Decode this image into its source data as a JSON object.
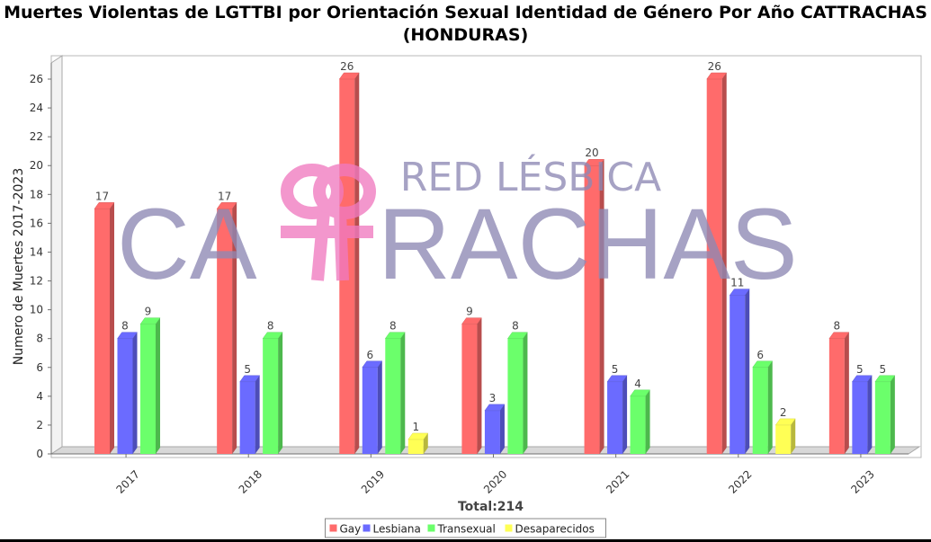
{
  "page": {
    "title": "Muertes Violentas de LGTTBI por Orientación Sexual Identidad de Género Por Año CATTRACHAS\n(HONDURAS)"
  },
  "watermark": {
    "top_text": "RED LÉSBICA",
    "main_text": "CATTRACHAS",
    "main_left": "CA",
    "main_right": "RACHAS",
    "text_color": "#8e89b4",
    "logo_color": "#f07ac0"
  },
  "chart_data": {
    "type": "bar",
    "categories": [
      "2017",
      "2018",
      "2019",
      "2020",
      "2021",
      "2022",
      "2023"
    ],
    "series": [
      {
        "name": "Gay",
        "color": "#ff6b6b",
        "values": [
          17,
          17,
          26,
          9,
          20,
          26,
          8
        ]
      },
      {
        "name": "Lesbiana",
        "color": "#6b6bff",
        "values": [
          8,
          5,
          6,
          3,
          5,
          11,
          5
        ]
      },
      {
        "name": "Transexual",
        "color": "#6bff6b",
        "values": [
          9,
          8,
          8,
          8,
          4,
          6,
          5
        ]
      },
      {
        "name": "Desaparecidos",
        "color": "#ffff55",
        "values": [
          0,
          0,
          1,
          0,
          0,
          2,
          0
        ]
      }
    ],
    "ylabel": "Numero de Muertes 2017-2023",
    "xlabel": "Total:214",
    "ylim": [
      0,
      26
    ],
    "yticks": [
      0,
      2,
      4,
      6,
      8,
      10,
      12,
      14,
      16,
      18,
      20,
      22,
      24,
      26
    ],
    "legend_position": "bottom-center",
    "grid": false
  }
}
